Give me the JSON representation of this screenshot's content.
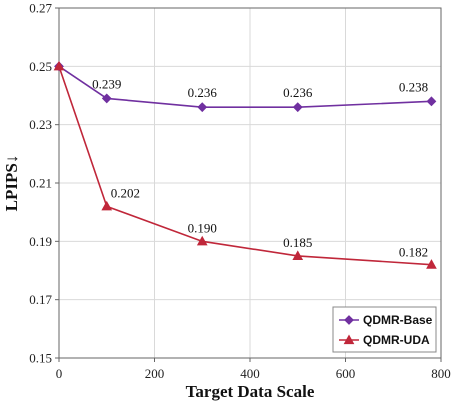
{
  "chart_data": {
    "type": "line",
    "xlabel": "Target Data Scale",
    "ylabel": "LPIPS↓",
    "xlim": [
      0,
      800
    ],
    "ylim": [
      0.15,
      0.27
    ],
    "xticks": [
      "0",
      "200",
      "400",
      "600",
      "800"
    ],
    "yticks": [
      "0.15",
      "0.17",
      "0.19",
      "0.21",
      "0.23",
      "0.25",
      "0.27"
    ],
    "grid": true,
    "legend_position": "bottom-right",
    "series": [
      {
        "name": "QDMR-Base",
        "color": "#7030a0",
        "marker": "diamond",
        "points": [
          {
            "x": 0,
            "y": 0.25,
            "label": ""
          },
          {
            "x": 100,
            "y": 0.239,
            "label": "0.239"
          },
          {
            "x": 300,
            "y": 0.236,
            "label": "0.236"
          },
          {
            "x": 500,
            "y": 0.236,
            "label": "0.236"
          },
          {
            "x": 780,
            "y": 0.238,
            "label": "0.238"
          }
        ]
      },
      {
        "name": "QDMR-UDA",
        "color": "#c0273a",
        "marker": "triangle",
        "points": [
          {
            "x": 0,
            "y": 0.25,
            "label": ""
          },
          {
            "x": 100,
            "y": 0.202,
            "label": "0.202"
          },
          {
            "x": 300,
            "y": 0.19,
            "label": "0.190"
          },
          {
            "x": 500,
            "y": 0.185,
            "label": "0.185"
          },
          {
            "x": 780,
            "y": 0.182,
            "label": "0.182"
          }
        ]
      }
    ]
  }
}
